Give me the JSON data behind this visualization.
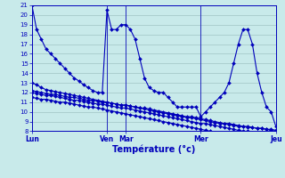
{
  "title": "Température (°c)",
  "bg_color": "#c8eaea",
  "grid_color": "#a0c4c4",
  "line_color": "#0000bb",
  "ylim": [
    8,
    21
  ],
  "yticks": [
    8,
    9,
    10,
    11,
    12,
    13,
    14,
    15,
    16,
    17,
    18,
    19,
    20,
    21
  ],
  "day_labels": [
    "Lun",
    "Ven",
    "Mar",
    "Mer",
    "Jeu"
  ],
  "day_positions": [
    0,
    16,
    20,
    36,
    52
  ],
  "n_points": 53,
  "series_main": [
    21,
    18.5,
    17.5,
    16.5,
    16.0,
    15.5,
    15.0,
    14.5,
    14.0,
    13.5,
    13.2,
    12.8,
    12.5,
    12.2,
    12.0,
    12.0,
    20.5,
    18.5,
    18.5,
    19.0,
    19.0,
    18.5,
    17.5,
    15.5,
    13.5,
    12.5,
    12.2,
    12.0,
    12.0,
    11.5,
    11.0,
    10.5,
    10.5,
    10.5,
    10.5,
    10.5,
    9.5,
    10.0,
    10.5,
    11.0,
    11.5,
    12.0,
    13.0,
    15.0,
    17.0,
    18.5,
    18.5,
    17.0,
    14.0,
    12.0,
    10.5,
    10.0,
    8.5
  ],
  "series_flat1": [
    13.0,
    12.8,
    12.5,
    12.3,
    12.2,
    12.1,
    12.0,
    11.9,
    11.8,
    11.7,
    11.6,
    11.5,
    11.4,
    11.3,
    11.2,
    11.1,
    11.0,
    10.9,
    10.8,
    10.7,
    10.7,
    10.6,
    10.5,
    10.4,
    10.3,
    10.2,
    10.1,
    10.0,
    9.9,
    9.8,
    9.7,
    9.6,
    9.5,
    9.4,
    9.4,
    9.3,
    9.2,
    9.1,
    9.0,
    8.9,
    8.8,
    8.8,
    8.7,
    8.6,
    8.5,
    8.5,
    8.4,
    8.4,
    8.3,
    8.3,
    8.2,
    8.2,
    8.1
  ],
  "series_flat2": [
    12.2,
    12.1,
    12.0,
    11.9,
    11.8,
    11.8,
    11.7,
    11.6,
    11.5,
    11.5,
    11.4,
    11.3,
    11.2,
    11.2,
    11.1,
    11.0,
    11.0,
    10.9,
    10.8,
    10.7,
    10.7,
    10.6,
    10.5,
    10.4,
    10.4,
    10.3,
    10.2,
    10.1,
    10.0,
    9.9,
    9.8,
    9.7,
    9.6,
    9.5,
    9.5,
    9.4,
    9.3,
    9.2,
    9.1,
    9.0,
    8.9,
    8.8,
    8.8,
    8.7,
    8.6,
    8.5,
    8.5,
    8.4,
    8.3,
    8.3,
    8.2,
    8.1,
    8.0
  ],
  "series_flat3": [
    12.0,
    11.9,
    11.8,
    11.7,
    11.7,
    11.6,
    11.5,
    11.4,
    11.3,
    11.2,
    11.2,
    11.1,
    11.0,
    10.9,
    10.8,
    10.8,
    10.7,
    10.6,
    10.5,
    10.4,
    10.4,
    10.3,
    10.2,
    10.1,
    10.0,
    9.9,
    9.8,
    9.7,
    9.6,
    9.5,
    9.4,
    9.3,
    9.2,
    9.1,
    9.0,
    8.9,
    8.8,
    8.8,
    8.7,
    8.6,
    8.5,
    8.4,
    8.3,
    8.2,
    8.1,
    8.0,
    8.0,
    7.9,
    7.8,
    7.8,
    7.7,
    7.6,
    7.5
  ],
  "series_flat4": [
    11.5,
    11.4,
    11.3,
    11.3,
    11.2,
    11.1,
    11.0,
    11.0,
    10.9,
    10.8,
    10.7,
    10.6,
    10.5,
    10.5,
    10.4,
    10.3,
    10.2,
    10.1,
    10.0,
    9.9,
    9.8,
    9.7,
    9.6,
    9.5,
    9.4,
    9.3,
    9.2,
    9.1,
    9.0,
    8.9,
    8.8,
    8.7,
    8.6,
    8.5,
    8.4,
    8.3,
    8.2,
    8.1,
    8.0,
    7.9,
    7.8,
    7.7,
    7.6,
    7.5,
    7.4,
    7.3,
    7.2,
    7.1,
    7.0,
    6.9,
    6.8,
    6.7,
    6.6
  ]
}
